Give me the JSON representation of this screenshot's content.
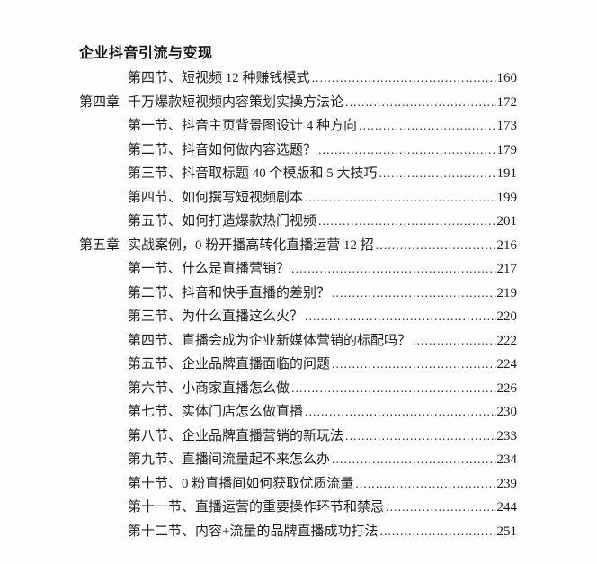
{
  "colors": {
    "background": "#fdfdfd",
    "text": "#1f1f1f"
  },
  "page": {
    "header": "企业抖音引流与变现"
  },
  "toc": {
    "entries": [
      {
        "type": "section",
        "label": "",
        "title": "第四节、短视频 12 种赚钱模式",
        "page": "160"
      },
      {
        "type": "chapter",
        "label": "第四章",
        "title": "千万爆款短视频内容策划实操方法论",
        "page": "172"
      },
      {
        "type": "section",
        "label": "",
        "title": "第一节、抖音主页背景图设计 4 种方向",
        "page": "173"
      },
      {
        "type": "section",
        "label": "",
        "title": "第二节、抖音如何做内容选题？",
        "page": "179"
      },
      {
        "type": "section",
        "label": "",
        "title": "第三节、抖音取标题 40 个模版和 5 大技巧",
        "page": "191"
      },
      {
        "type": "section",
        "label": "",
        "title": "第四节、如何撰写短视频剧本",
        "page": "199"
      },
      {
        "type": "section",
        "label": "",
        "title": "第五节、如何打造爆款热门视频",
        "page": "201"
      },
      {
        "type": "chapter",
        "label": "第五章",
        "title": "实战案例，0 粉开播高转化直播运营 12 招",
        "page": "216"
      },
      {
        "type": "section",
        "label": "",
        "title": "第一节、什么是直播营销？",
        "page": "217"
      },
      {
        "type": "section",
        "label": "",
        "title": "第二节、抖音和快手直播的差别？",
        "page": "219"
      },
      {
        "type": "section",
        "label": "",
        "title": "第三节、为什么直播这么火？",
        "page": "220"
      },
      {
        "type": "section",
        "label": "",
        "title": "第四节、直播会成为企业新媒体营销的标配吗？",
        "page": "222"
      },
      {
        "type": "section",
        "label": "",
        "title": "第五节、企业品牌直播面临的问题",
        "page": "224"
      },
      {
        "type": "section",
        "label": "",
        "title": "第六节、小商家直播怎么做",
        "page": "226"
      },
      {
        "type": "section",
        "label": "",
        "title": "第七节、实体门店怎么做直播",
        "page": "230"
      },
      {
        "type": "section",
        "label": "",
        "title": "第八节、企业品牌直播营销的新玩法",
        "page": "233"
      },
      {
        "type": "section",
        "label": "",
        "title": "第九节、直播间流量起不来怎么办",
        "page": "234"
      },
      {
        "type": "section",
        "label": "",
        "title": "第十节、0 粉直播间如何获取优质流量",
        "page": "239"
      },
      {
        "type": "section",
        "label": "",
        "title": "第十一节、直播运营的重要操作环节和禁忌",
        "page": "244"
      },
      {
        "type": "section",
        "label": "",
        "title": "第十二节、内容+流量的品牌直播成功打法",
        "page": "251"
      }
    ]
  }
}
